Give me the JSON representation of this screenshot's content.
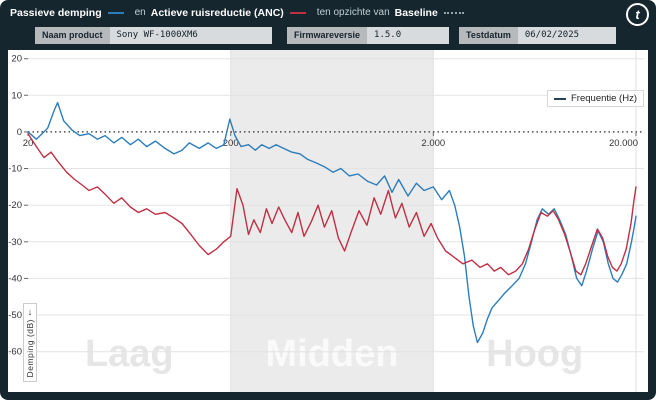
{
  "header": {
    "title_parts": {
      "passive_label": "Passieve demping",
      "conj1": "en",
      "anc_label": "Actieve ruisreductie (ANC)",
      "conj2": "ten opzichte van",
      "baseline_label": "Baseline"
    },
    "logo_letter": "t"
  },
  "info_bar": {
    "fields": [
      {
        "label": "Naam product",
        "value": "Sony WF-1000XM6"
      },
      {
        "label": "Firmwareversie",
        "value": "1.5.0"
      },
      {
        "label": "Testdatum",
        "value": "06/02/2025"
      }
    ]
  },
  "chart": {
    "legend_label": "Frequentie (Hz)",
    "y_axis_label": "Demping (dB)",
    "y_axis_arrow": "↓"
  },
  "chart_data": {
    "type": "line",
    "title": "Passieve demping en Actieve ruisreductie (ANC) ten opzichte van Baseline",
    "x_scale": "log",
    "xlabel": "Frequentie (Hz)",
    "ylabel": "Demping (dB)",
    "xlim": [
      20,
      20000
    ],
    "ylim": [
      -62,
      21
    ],
    "baseline": 0,
    "y_ticks": [
      20,
      10,
      0,
      -10,
      -20,
      -30,
      -40,
      -50,
      -60
    ],
    "x_ticks": [
      {
        "value": 20,
        "label": "20"
      },
      {
        "value": 200,
        "label": "200"
      },
      {
        "value": 2000,
        "label": "2.000"
      },
      {
        "value": 20000,
        "label": "20.000"
      }
    ],
    "regions": [
      {
        "label": "Laag",
        "from": 20,
        "to": 200,
        "shaded": false
      },
      {
        "label": "Midden",
        "from": 200,
        "to": 2000,
        "shaded": true
      },
      {
        "label": "Hoog",
        "from": 2000,
        "to": 20000,
        "shaded": false
      }
    ],
    "series": [
      {
        "name": "Passieve demping",
        "color": "#2d7dbb",
        "points": [
          [
            20,
            0
          ],
          [
            22,
            -2
          ],
          [
            25,
            1
          ],
          [
            27,
            6
          ],
          [
            28,
            8
          ],
          [
            30,
            3
          ],
          [
            33,
            0.5
          ],
          [
            36,
            -1
          ],
          [
            40,
            -0.5
          ],
          [
            44,
            -2
          ],
          [
            48,
            -1
          ],
          [
            53,
            -3
          ],
          [
            58,
            -1.5
          ],
          [
            64,
            -3.5
          ],
          [
            70,
            -2
          ],
          [
            77,
            -4
          ],
          [
            85,
            -2.5
          ],
          [
            95,
            -4.5
          ],
          [
            105,
            -6
          ],
          [
            115,
            -5
          ],
          [
            125,
            -3
          ],
          [
            140,
            -4.5
          ],
          [
            155,
            -3
          ],
          [
            170,
            -4.5
          ],
          [
            185,
            -3.5
          ],
          [
            198,
            3.5
          ],
          [
            210,
            -1
          ],
          [
            225,
            -4
          ],
          [
            245,
            -3.5
          ],
          [
            265,
            -5
          ],
          [
            285,
            -3.5
          ],
          [
            310,
            -4.5
          ],
          [
            335,
            -3.5
          ],
          [
            365,
            -4.5
          ],
          [
            400,
            -5.5
          ],
          [
            440,
            -6
          ],
          [
            480,
            -7.5
          ],
          [
            530,
            -8.5
          ],
          [
            580,
            -9.5
          ],
          [
            640,
            -11
          ],
          [
            700,
            -10
          ],
          [
            770,
            -12
          ],
          [
            850,
            -11.5
          ],
          [
            950,
            -13.5
          ],
          [
            1050,
            -14.5
          ],
          [
            1150,
            -12
          ],
          [
            1250,
            -16.5
          ],
          [
            1350,
            -13
          ],
          [
            1500,
            -17.5
          ],
          [
            1650,
            -14
          ],
          [
            1800,
            -16
          ],
          [
            2000,
            -15
          ],
          [
            2200,
            -18.5
          ],
          [
            2400,
            -16
          ],
          [
            2550,
            -20
          ],
          [
            2700,
            -26
          ],
          [
            2850,
            -34
          ],
          [
            3000,
            -45
          ],
          [
            3150,
            -53
          ],
          [
            3300,
            -57.5
          ],
          [
            3500,
            -55
          ],
          [
            3700,
            -51
          ],
          [
            3900,
            -48
          ],
          [
            4200,
            -46
          ],
          [
            4500,
            -44
          ],
          [
            4900,
            -42
          ],
          [
            5300,
            -40
          ],
          [
            5700,
            -36
          ],
          [
            6100,
            -30
          ],
          [
            6500,
            -24
          ],
          [
            6900,
            -21
          ],
          [
            7400,
            -22.5
          ],
          [
            7900,
            -21
          ],
          [
            8400,
            -24
          ],
          [
            9000,
            -28
          ],
          [
            9600,
            -34
          ],
          [
            10200,
            -40
          ],
          [
            10800,
            -42
          ],
          [
            11400,
            -38
          ],
          [
            12200,
            -32
          ],
          [
            13000,
            -27
          ],
          [
            13800,
            -30
          ],
          [
            14600,
            -36
          ],
          [
            15400,
            -40
          ],
          [
            16200,
            -41
          ],
          [
            17000,
            -39
          ],
          [
            18000,
            -36
          ],
          [
            19000,
            -30
          ],
          [
            19600,
            -26
          ],
          [
            20000,
            -23
          ]
        ]
      },
      {
        "name": "Actieve ruisreductie (ANC)",
        "color": "#bf3044",
        "points": [
          [
            20,
            -0.5
          ],
          [
            22,
            -4
          ],
          [
            24,
            -7
          ],
          [
            26,
            -5.5
          ],
          [
            28,
            -8
          ],
          [
            31,
            -11
          ],
          [
            34,
            -13
          ],
          [
            37,
            -14.5
          ],
          [
            40,
            -16
          ],
          [
            44,
            -15
          ],
          [
            48,
            -17
          ],
          [
            53,
            -19.5
          ],
          [
            58,
            -18
          ],
          [
            64,
            -20.5
          ],
          [
            70,
            -22
          ],
          [
            77,
            -21
          ],
          [
            85,
            -22.5
          ],
          [
            95,
            -22
          ],
          [
            105,
            -23.5
          ],
          [
            115,
            -25
          ],
          [
            125,
            -27.5
          ],
          [
            140,
            -31
          ],
          [
            155,
            -33.5
          ],
          [
            170,
            -32
          ],
          [
            185,
            -30
          ],
          [
            200,
            -28.5
          ],
          [
            215,
            -15.5
          ],
          [
            230,
            -20
          ],
          [
            245,
            -28
          ],
          [
            260,
            -24
          ],
          [
            280,
            -27.5
          ],
          [
            300,
            -21
          ],
          [
            320,
            -25
          ],
          [
            345,
            -20.5
          ],
          [
            370,
            -24
          ],
          [
            400,
            -27.5
          ],
          [
            430,
            -22
          ],
          [
            460,
            -28.5
          ],
          [
            500,
            -24.5
          ],
          [
            540,
            -20
          ],
          [
            580,
            -26
          ],
          [
            630,
            -21.5
          ],
          [
            680,
            -29
          ],
          [
            730,
            -32.5
          ],
          [
            790,
            -27
          ],
          [
            860,
            -21.5
          ],
          [
            940,
            -25.5
          ],
          [
            1020,
            -18
          ],
          [
            1100,
            -22.5
          ],
          [
            1200,
            -16
          ],
          [
            1300,
            -23.5
          ],
          [
            1400,
            -19.5
          ],
          [
            1520,
            -26
          ],
          [
            1650,
            -22
          ],
          [
            1800,
            -28.5
          ],
          [
            1950,
            -25
          ],
          [
            2100,
            -29
          ],
          [
            2300,
            -32.5
          ],
          [
            2500,
            -34
          ],
          [
            2800,
            -36
          ],
          [
            3100,
            -35
          ],
          [
            3400,
            -37
          ],
          [
            3700,
            -36
          ],
          [
            4000,
            -38
          ],
          [
            4300,
            -37
          ],
          [
            4700,
            -39
          ],
          [
            5100,
            -38
          ],
          [
            5500,
            -36
          ],
          [
            5900,
            -32
          ],
          [
            6300,
            -27
          ],
          [
            6800,
            -22
          ],
          [
            7300,
            -23
          ],
          [
            7800,
            -21.5
          ],
          [
            8300,
            -24
          ],
          [
            8900,
            -28
          ],
          [
            9500,
            -33
          ],
          [
            10100,
            -38
          ],
          [
            10700,
            -39
          ],
          [
            11300,
            -36
          ],
          [
            12100,
            -31
          ],
          [
            12900,
            -26.5
          ],
          [
            13700,
            -29
          ],
          [
            14500,
            -34
          ],
          [
            15300,
            -37
          ],
          [
            16100,
            -38
          ],
          [
            16900,
            -36
          ],
          [
            17900,
            -32
          ],
          [
            18900,
            -25
          ],
          [
            19500,
            -19
          ],
          [
            20000,
            -15
          ]
        ]
      }
    ],
    "baseline_series": {
      "name": "Baseline",
      "style": "dotted",
      "value": 0
    },
    "legend_position": "top-right",
    "grid": true
  }
}
